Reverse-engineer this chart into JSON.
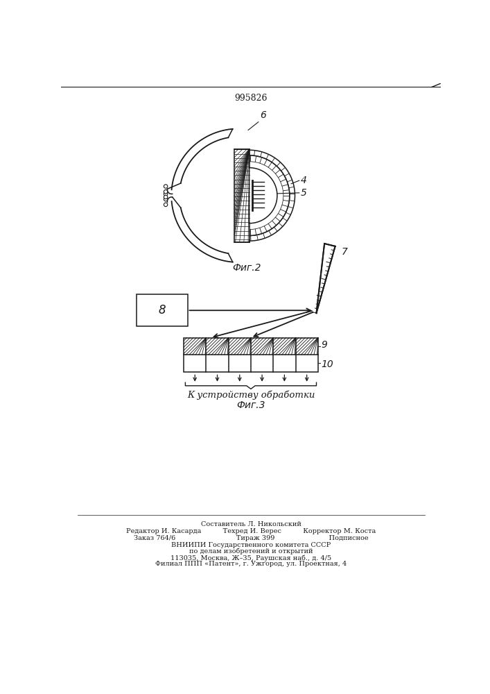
{
  "title": "995826",
  "fig2_label": "Фиг.2",
  "fig3_label": "Фиг.3",
  "label_6": "6",
  "label_4": "4",
  "label_5": "5",
  "label_7": "7",
  "label_8": "8",
  "label_9": "9",
  "label_10": "10",
  "arrow_text": "К устройству обработки",
  "footer_lines": [
    "Составитель Л. Никольский",
    "Редактор И. Касарда          Техред И. Верес          Корректор М. Коста",
    "Заказ 764/6                            Тираж 399                         Подписное",
    "ВНИИПИ Государственного комитета СССР",
    "по делам изобретений и открытий",
    "113035, Москва, Ж–35, Раушская наб., д. 4/5",
    "Филиал ППП «Патент», г. Ужгород, ул. Проектная, 4"
  ],
  "line_color": "#1a1a1a"
}
